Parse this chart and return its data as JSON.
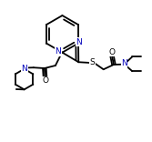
{
  "bg_color": "#ffffff",
  "line_color": "#000000",
  "blue_color": "#0000bb",
  "line_width": 1.3,
  "font_size": 6.5,
  "fig_width": 1.67,
  "fig_height": 1.56,
  "dpi": 100,
  "xlim": [
    -0.05,
    1.05
  ],
  "ylim": [
    0.02,
    1.0
  ]
}
